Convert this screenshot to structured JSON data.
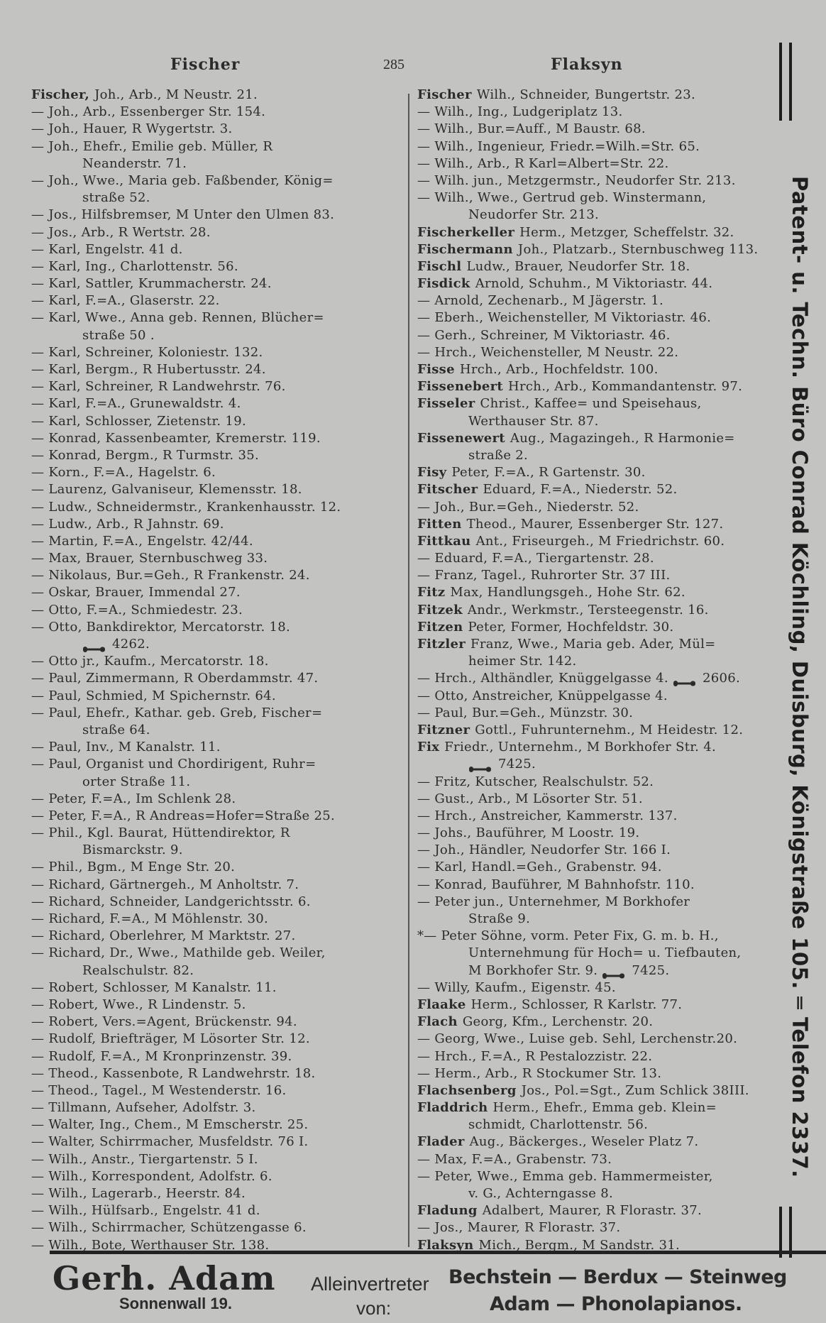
{
  "header": {
    "left_word": "Fischer",
    "page_number": "285",
    "right_word": "Flaksyn"
  },
  "columns": {
    "left": [
      {
        "s": "Fischer,",
        "t": "Joh., Arb., M Neustr. 21."
      },
      {
        "t": "— Joh., Arb., Essenberger Str. 154."
      },
      {
        "t": "— Joh., Hauer, R Wygertstr. 3."
      },
      {
        "t": "— Joh., Ehefr., Emilie geb. Müller, R"
      },
      {
        "i": true,
        "t": "Neanderstr. 71."
      },
      {
        "t": "— Joh., Wwe., Maria geb. Faßbender, König="
      },
      {
        "i": true,
        "t": "straße 52."
      },
      {
        "t": "— Jos., Hilfsbremser, M Unter den Ulmen 83."
      },
      {
        "t": "— Jos., Arb., R Wertstr. 28."
      },
      {
        "t": "— Karl, Engelstr. 41 d."
      },
      {
        "t": "— Karl, Ing., Charlottenstr. 56."
      },
      {
        "t": "— Karl, Sattler, Krummacherstr. 24."
      },
      {
        "t": "— Karl, F.=A., Glaserstr. 22."
      },
      {
        "t": "— Karl, Wwe., Anna geb. Rennen, Blücher="
      },
      {
        "i": true,
        "t": "straße 50 ."
      },
      {
        "t": "— Karl, Schreiner, Koloniestr. 132."
      },
      {
        "t": "— Karl, Bergm., R Hubertusstr. 24."
      },
      {
        "t": "— Karl, Schreiner, R Landwehrstr. 76."
      },
      {
        "t": "— Karl, F.=A., Grunewaldstr. 4."
      },
      {
        "t": "— Karl, Schlosser, Zietenstr. 19."
      },
      {
        "t": "— Konrad, Kassenbeamter, Kremerstr. 119."
      },
      {
        "t": "— Konrad, Bergm., R Turmstr. 35."
      },
      {
        "t": "— Korn., F.=A., Hagelstr. 6."
      },
      {
        "t": "— Laurenz, Galvaniseur, Klemensstr. 18."
      },
      {
        "t": "— Ludw., Schneidermstr., Krankenhausstr. 12."
      },
      {
        "t": "— Ludw., Arb., R Jahnstr. 69."
      },
      {
        "t": "— Martin, F.=A., Engelstr. 42/44."
      },
      {
        "t": "— Max, Brauer, Sternbuschweg 33."
      },
      {
        "t": "— Nikolaus, Bur.=Geh., R Frankenstr. 24."
      },
      {
        "t": "— Oskar, Brauer, Immendal 27."
      },
      {
        "t": "— Otto, F.=A., Schmiedestr. 23."
      },
      {
        "t": "— Otto, Bankdirektor, Mercatorstr. 18."
      },
      {
        "i": true,
        "ph": "4262."
      },
      {
        "t": "— Otto jr., Kaufm., Mercatorstr. 18."
      },
      {
        "t": "— Paul, Zimmermann, R Oberdammstr. 47."
      },
      {
        "t": "— Paul, Schmied, M Spichernstr. 64."
      },
      {
        "t": "— Paul, Ehefr., Kathar. geb. Greb, Fischer="
      },
      {
        "i": true,
        "t": "straße 64."
      },
      {
        "t": "— Paul, Inv., M Kanalstr. 11."
      },
      {
        "t": "— Paul, Organist und Chordirigent, Ruhr="
      },
      {
        "i": true,
        "t": "orter Straße 11."
      },
      {
        "t": "— Peter, F.=A., Im Schlenk 28."
      },
      {
        "t": "— Peter, F.=A., R Andreas=Hofer=Straße 25."
      },
      {
        "t": "— Phil., Kgl. Baurat, Hüttendirektor, R"
      },
      {
        "i": true,
        "t": "Bismarckstr. 9."
      },
      {
        "t": "— Phil., Bgm., M Enge Str. 20."
      },
      {
        "t": "— Richard, Gärtnergeh., M Anholtstr. 7."
      },
      {
        "t": "— Richard, Schneider, Landgerichtsstr. 6."
      },
      {
        "t": "— Richard, F.=A., M Möhlenstr. 30."
      },
      {
        "t": "— Richard, Oberlehrer, M Marktstr. 27."
      },
      {
        "t": "— Richard, Dr., Wwe., Mathilde geb. Weiler,"
      },
      {
        "i": true,
        "t": "Realschulstr. 82."
      },
      {
        "t": "— Robert, Schlosser, M Kanalstr. 11."
      },
      {
        "t": "— Robert, Wwe., R Lindenstr. 5."
      },
      {
        "t": "— Robert, Vers.=Agent, Brückenstr. 94."
      },
      {
        "t": "— Rudolf, Briefträger, M Lösorter Str. 12."
      },
      {
        "t": "— Rudolf, F.=A., M Kronprinzenstr. 39."
      },
      {
        "t": "— Theod., Kassenbote, R Landwehrstr. 18."
      },
      {
        "t": "— Theod., Tagel., M Westenderstr. 16."
      },
      {
        "t": "— Tillmann, Aufseher, Adolfstr. 3."
      },
      {
        "t": "— Walter, Ing., Chem., M Emscherstr. 25."
      },
      {
        "t": "— Walter, Schirrmacher, Musfeldstr. 76 I."
      },
      {
        "t": "— Wilh., Anstr., Tiergartenstr. 5 I."
      },
      {
        "t": "— Wilh., Korrespondent, Adolfstr. 6."
      },
      {
        "t": "— Wilh., Lagerarb., Heerstr. 84."
      },
      {
        "t": "— Wilh., Hülfsarb., Engelstr. 41 d."
      },
      {
        "t": "— Wilh., Schirrmacher, Schützengasse 6."
      },
      {
        "t": "— Wilh., Bote, Werthauser Str. 138."
      }
    ],
    "right": [
      {
        "s": "Fischer",
        "t": "Wilh., Schneider, Bungertstr. 23."
      },
      {
        "t": "— Wilh., Ing., Ludgeriplatz 13."
      },
      {
        "t": "— Wilh., Bur.=Auff., M Baustr. 68."
      },
      {
        "t": "— Wilh., Ingenieur, Friedr.=Wilh.=Str. 65."
      },
      {
        "t": "— Wilh., Arb., R Karl=Albert=Str. 22."
      },
      {
        "t": "— Wilh. jun., Metzgermstr., Neudorfer Str. 213."
      },
      {
        "t": "— Wilh., Wwe., Gertrud geb. Winstermann,"
      },
      {
        "i": true,
        "t": "Neudorfer Str. 213."
      },
      {
        "s": "Fischerkeller",
        "t": "Herm., Metzger, Scheffelstr. 32."
      },
      {
        "s": "Fischermann",
        "t": "Joh., Platzarb., Sternbuschweg 113."
      },
      {
        "s": "Fischl",
        "t": "Ludw., Brauer, Neudorfer Str. 18."
      },
      {
        "s": "Fisdick",
        "t": "Arnold, Schuhm., M Viktoriastr. 44."
      },
      {
        "t": "— Arnold, Zechenarb., M Jägerstr. 1."
      },
      {
        "t": "— Eberh., Weichensteller, M Viktoriastr. 46."
      },
      {
        "t": "— Gerh., Schreiner, M Viktoriastr. 46."
      },
      {
        "t": "— Hrch., Weichensteller, M Neustr. 22."
      },
      {
        "s": "Fisse",
        "t": "Hrch., Arb., Hochfeldstr. 100."
      },
      {
        "s": "Fissenebert",
        "t": "Hrch., Arb., Kommandantenstr. 97."
      },
      {
        "s": "Fisseler",
        "t": "Christ., Kaffee= und Speisehaus,"
      },
      {
        "i": true,
        "t": "Werthauser Str. 87."
      },
      {
        "s": "Fissenewert",
        "t": "Aug., Magazingeh., R Harmonie="
      },
      {
        "i": true,
        "t": "straße 2."
      },
      {
        "s": "Fisy",
        "t": "Peter, F.=A., R Gartenstr. 30."
      },
      {
        "s": "Fitscher",
        "t": "Eduard, F.=A., Niederstr. 52."
      },
      {
        "t": "— Joh., Bur.=Geh., Niederstr. 52."
      },
      {
        "s": "Fitten",
        "t": "Theod., Maurer, Essenberger Str. 127."
      },
      {
        "s": "Fittkau",
        "t": "Ant., Friseurgeh., M Friedrichstr. 60."
      },
      {
        "t": "— Eduard, F.=A., Tiergartenstr. 28."
      },
      {
        "t": "— Franz, Tagel., Ruhrorter Str. 37 III."
      },
      {
        "s": "Fitz",
        "t": "Max, Handlungsgeh., Hohe Str. 62."
      },
      {
        "s": "Fitzek",
        "t": "Andr., Werkmstr., Tersteegenstr. 16."
      },
      {
        "s": "Fitzen",
        "t": "Peter, Former, Hochfeldstr. 30."
      },
      {
        "s": "Fitzler",
        "t": "Franz, Wwe., Maria geb. Ader, Mül="
      },
      {
        "i": true,
        "t": "heimer Str. 142."
      },
      {
        "t": "— Hrch., Althändler, Knüggelgasse 4.",
        "ph": "2606."
      },
      {
        "t": "— Otto, Anstreicher, Knüppelgasse 4."
      },
      {
        "t": "— Paul, Bur.=Geh., Münzstr. 30."
      },
      {
        "s": "Fitzner",
        "t": "Gottl., Fuhrunternehm., M Heidestr. 12."
      },
      {
        "s": "Fix",
        "t": "Friedr., Unternehm., M Borkhofer Str. 4."
      },
      {
        "i": true,
        "ph": "7425."
      },
      {
        "t": "— Fritz, Kutscher, Realschulstr. 52."
      },
      {
        "t": "— Gust., Arb., M Lösorter Str. 51."
      },
      {
        "t": "— Hrch., Anstreicher, Kammerstr. 137."
      },
      {
        "t": "— Johs., Bauführer, M Loostr. 19."
      },
      {
        "t": "— Joh., Händler, Neudorfer Str. 166 I."
      },
      {
        "t": "— Karl, Handl.=Geh., Grabenstr. 94."
      },
      {
        "t": "— Konrad, Bauführer, M Bahnhofstr. 110."
      },
      {
        "t": "— Peter jun., Unternehmer, M Borkhofer"
      },
      {
        "i": true,
        "t": "Straße 9."
      },
      {
        "t": "*— Peter Söhne, vorm. Peter Fix, G. m. b. H.,"
      },
      {
        "i": true,
        "t": "Unternehmung für Hoch= u. Tiefbauten,"
      },
      {
        "i": true,
        "t": "M Borkhofer Str. 9.",
        "ph": "7425."
      },
      {
        "t": "— Willy, Kaufm., Eigenstr. 45."
      },
      {
        "s": "Flaake",
        "t": "Herm., Schlosser, R Karlstr. 77."
      },
      {
        "s": "Flach",
        "t": "Georg, Kfm., Lerchenstr. 20."
      },
      {
        "t": "— Georg, Wwe., Luise geb. Sehl, Lerchenstr.20."
      },
      {
        "t": "— Hrch., F.=A., R Pestalozzistr. 22."
      },
      {
        "t": "— Herm., Arb., R Stockumer Str. 13."
      },
      {
        "s": "Flachsenberg",
        "t": "Jos., Pol.=Sgt., Zum Schlick 38III."
      },
      {
        "s": "Fladdrich",
        "t": "Herm., Ehefr., Emma geb. Klein="
      },
      {
        "i": true,
        "t": "schmidt, Charlottenstr. 56."
      },
      {
        "s": "Flader",
        "t": "Aug., Bäckerges., Weseler Platz 7."
      },
      {
        "t": "— Max, F.=A., Grabenstr. 73."
      },
      {
        "t": "— Peter, Wwe., Emma geb. Hammermeister,"
      },
      {
        "i": true,
        "t": "v. G., Achterngasse 8."
      },
      {
        "s": "Fladung",
        "t": "Adalbert, Maurer, R Florastr. 37."
      },
      {
        "t": "— Jos., Maurer, R Florastr. 37."
      },
      {
        "s": "Flaksyn",
        "t": "Mich., Bergm., M Sandstr. 31."
      }
    ]
  },
  "phone_icon": "telephone-handset-icon",
  "side_banner": {
    "text": "Patent- u. Techn. Büro Conrad Köchling, Duisburg, Königstraße 105. ═ Telefon 2337."
  },
  "advertisement": {
    "name": "Gerh. Adam",
    "sole_agent": "Alleinvertreter",
    "address": "Sonnenwall 19.",
    "from": "von:",
    "brands_line1": "Bechstein — Berdux — Steinweg",
    "brands_line2": "Adam — Phonolapianos."
  },
  "colors": {
    "paper": "#c3c3c1",
    "ink": "#2b2b2b"
  }
}
